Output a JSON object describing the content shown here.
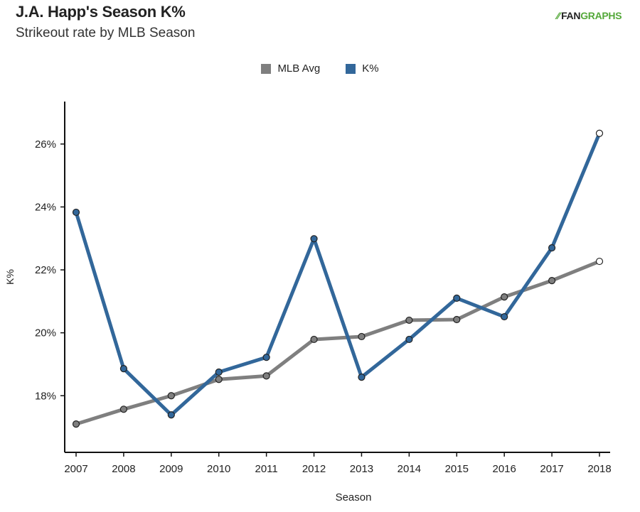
{
  "header": {
    "title": "J.A. Happ's Season K%",
    "subtitle": "Strikeout rate by MLB Season",
    "logo_prefix": "FAN",
    "logo_suffix": "GRAPHS"
  },
  "chart_data": {
    "type": "line",
    "title": "J.A. Happ's Season K%",
    "subtitle": "Strikeout rate by MLB Season",
    "xlabel": "Season",
    "ylabel": "K%",
    "x": [
      2007,
      2008,
      2009,
      2010,
      2011,
      2012,
      2013,
      2014,
      2015,
      2016,
      2017,
      2018
    ],
    "ylim": [
      16.2,
      27.35
    ],
    "yticks": [
      18,
      20,
      22,
      24,
      26
    ],
    "ytick_labels": [
      "18%",
      "20%",
      "22%",
      "24%",
      "26%"
    ],
    "legend_position": "top-center",
    "grid": false,
    "series": [
      {
        "name": "MLB Avg",
        "color": "#7f7f7f",
        "values": [
          17.1,
          17.57,
          18.0,
          18.52,
          18.63,
          19.79,
          19.88,
          20.4,
          20.42,
          21.14,
          21.66,
          22.27
        ]
      },
      {
        "name": "K%",
        "color": "#32679a",
        "values": [
          23.83,
          18.86,
          17.39,
          18.75,
          19.22,
          22.99,
          18.59,
          19.79,
          21.1,
          20.51,
          22.7,
          26.34
        ]
      }
    ],
    "last_point_hollow": true
  }
}
